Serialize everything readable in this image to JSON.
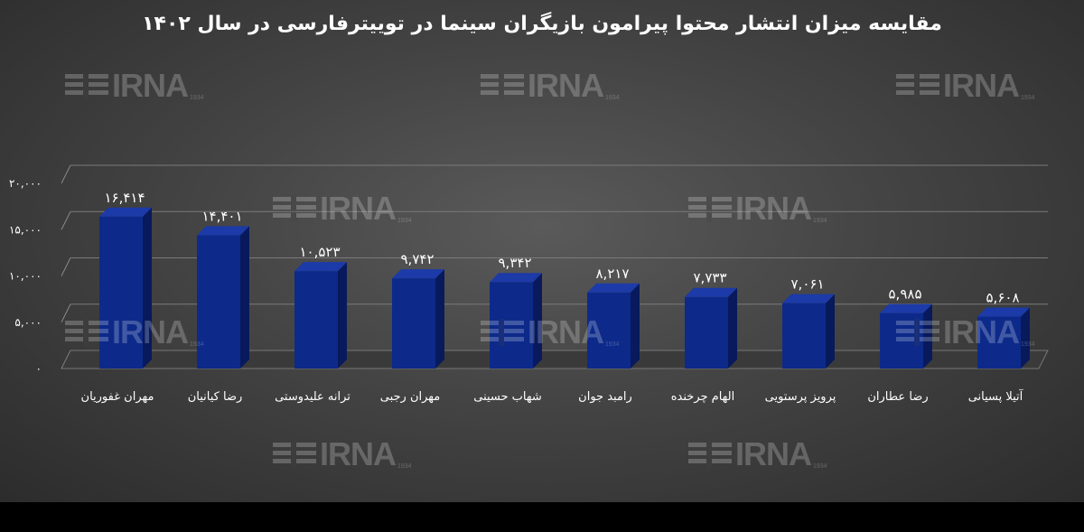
{
  "title": "مقایسه میزان انتشار محتوا پیرامون بازیگران سینما در توییترفارسی در سال ۱۴۰۲",
  "watermark": {
    "text": "IRNA",
    "year": "1934"
  },
  "colors": {
    "bar_front": "#0d2a8a",
    "bar_side": "#081a5c",
    "bar_top": "#1c3aa8",
    "text": "#ffffff",
    "background": "#444444"
  },
  "chart_data": {
    "type": "bar",
    "title": "مقایسه میزان انتشار محتوا پیرامون بازیگران سینما در توییترفارسی در سال ۱۴۰۲",
    "categories": [
      "مهران غفوریان",
      "رضا کیانیان",
      "ترانه علیدوستی",
      "مهران رجبی",
      "شهاب حسینی",
      "رامبد جوان",
      "الهام چرخنده",
      "پرویز پرستویی",
      "رضا عطاران",
      "آتیلا پسیانی"
    ],
    "values": [
      16414,
      14401,
      10523,
      9742,
      9342,
      8217,
      7733,
      7061,
      5985,
      5608
    ],
    "data_labels": [
      "۱۶,۴۱۴",
      "۱۴,۴۰۱",
      "۱۰,۵۲۳",
      "۹,۷۴۲",
      "۹,۳۴۲",
      "۸,۲۱۷",
      "۷,۷۳۳",
      "۷,۰۶۱",
      "۵,۹۸۵",
      "۵,۶۰۸"
    ],
    "yticks": [
      0,
      5000,
      10000,
      15000,
      20000
    ],
    "ytick_labels": [
      "۰",
      "۵,۰۰۰",
      "۱۰,۰۰۰",
      "۱۵,۰۰۰",
      "۲۰,۰۰۰"
    ],
    "ylim": [
      0,
      20000
    ],
    "xlabel": "",
    "ylabel": "",
    "grid": true,
    "legend": "none",
    "style": "3d"
  }
}
